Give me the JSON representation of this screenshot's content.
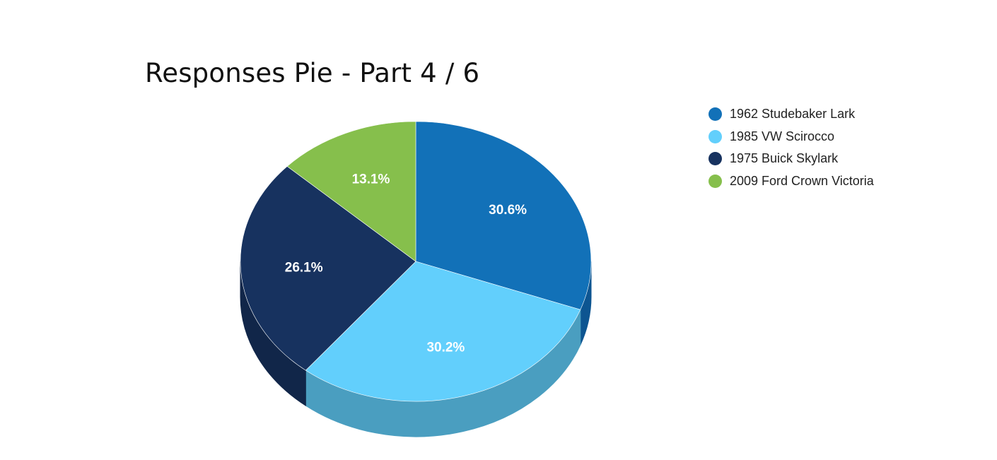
{
  "chart_data": {
    "type": "pie",
    "title": "Responses Pie - Part 4 / 6",
    "legend_position": "top-right",
    "style": "3d",
    "slices": [
      {
        "name": "1962 Studebaker Lark",
        "value": 30.6,
        "label": "30.6%",
        "color": "#1271b8",
        "side_color": "#0d5591"
      },
      {
        "name": "1985 VW Scirocco",
        "value": 30.2,
        "label": "30.2%",
        "color": "#62cffc",
        "side_color": "#4a9ec0"
      },
      {
        "name": "1975 Buick Skylark",
        "value": 26.1,
        "label": "26.1%",
        "color": "#17325f",
        "side_color": "#112649"
      },
      {
        "name": "2009 Ford Crown Victoria",
        "value": 13.1,
        "label": "13.1%",
        "color": "#86bf4c",
        "side_color": "#6a9a3a"
      }
    ]
  }
}
